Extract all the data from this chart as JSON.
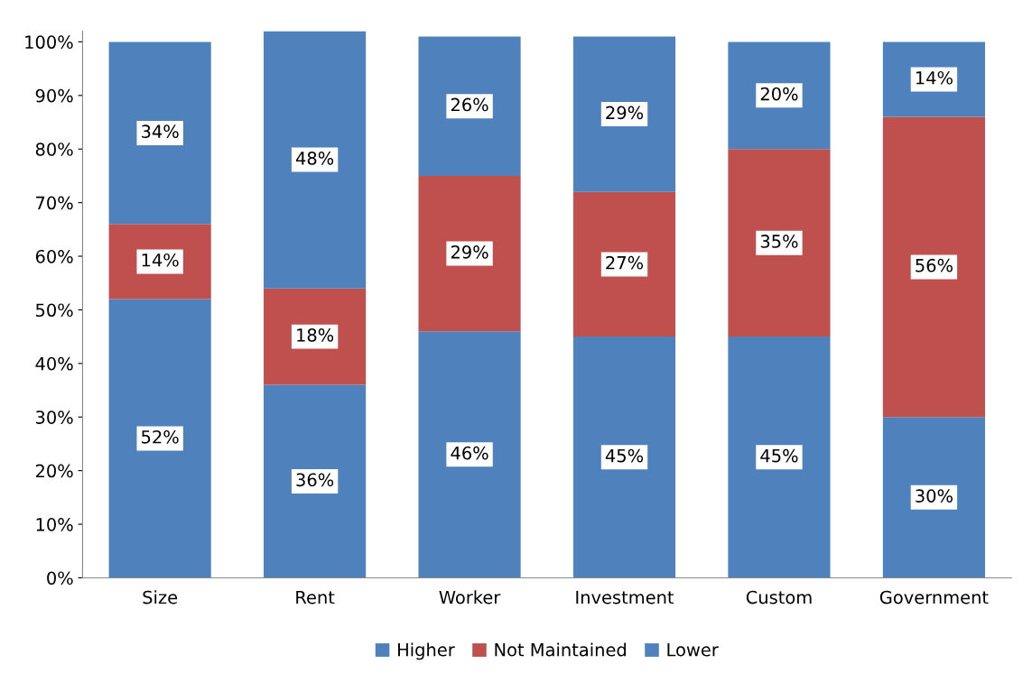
{
  "chart_data": {
    "type": "bar",
    "stacked": true,
    "categories": [
      "Size",
      "Rent",
      "Worker",
      "Investment",
      "Custom",
      "Government"
    ],
    "series": [
      {
        "name": "Lower",
        "color": "#4f81bd",
        "values": [
          52,
          36,
          46,
          45,
          45,
          30
        ],
        "value_labels": [
          "52%",
          "36%",
          "46%",
          "45%",
          "45%",
          "30%"
        ]
      },
      {
        "name": "Not Maintained",
        "color": "#c0504d",
        "values": [
          14,
          18,
          29,
          27,
          35,
          56
        ],
        "value_labels": [
          "14%",
          "18%",
          "29%",
          "27%",
          "35%",
          "56%"
        ]
      },
      {
        "name": "Higher",
        "color": "#4f81bd",
        "values": [
          34,
          48,
          26,
          29,
          20,
          14
        ],
        "value_labels": [
          "34%",
          "48%",
          "26%",
          "29%",
          "20%",
          "14%"
        ]
      }
    ],
    "ylim": [
      0,
      102
    ],
    "yticks": [
      {
        "value": 0,
        "label": "0%"
      },
      {
        "value": 10,
        "label": "10%"
      },
      {
        "value": 20,
        "label": "20%"
      },
      {
        "value": 30,
        "label": "30%"
      },
      {
        "value": 40,
        "label": "40%"
      },
      {
        "value": 50,
        "label": "50%"
      },
      {
        "value": 60,
        "label": "60%"
      },
      {
        "value": 70,
        "label": "70%"
      },
      {
        "value": 80,
        "label": "80%"
      },
      {
        "value": 90,
        "label": "90%"
      },
      {
        "value": 100,
        "label": "100%"
      }
    ],
    "grid": false,
    "legend": "bottom"
  }
}
